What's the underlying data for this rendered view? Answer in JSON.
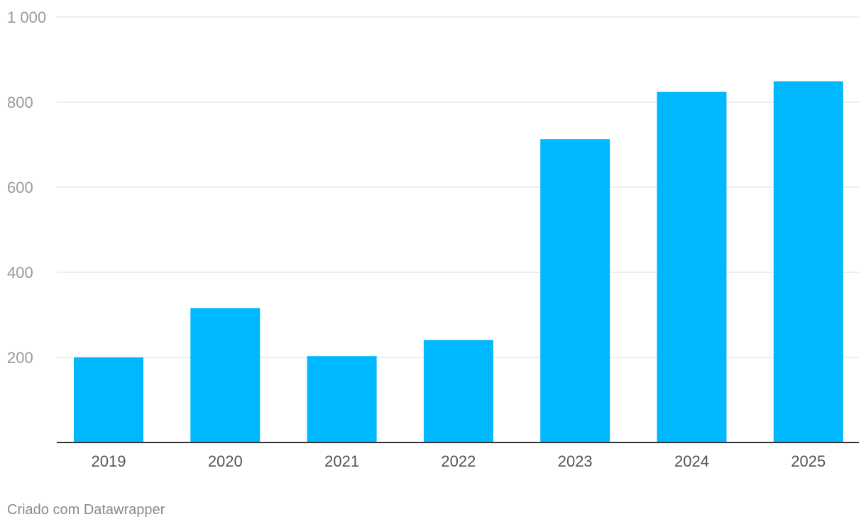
{
  "chart_data": {
    "type": "bar",
    "categories": [
      "2019",
      "2020",
      "2021",
      "2022",
      "2023",
      "2024",
      "2025"
    ],
    "values": [
      200,
      316,
      203,
      241,
      713,
      824,
      849
    ],
    "yticks": [
      200,
      400,
      600,
      800,
      1000
    ],
    "ytick_labels": [
      "200",
      "400",
      "600",
      "800",
      "1 000"
    ],
    "ylim": [
      0,
      1000
    ],
    "grid": true,
    "bar_color": "#00b8ff"
  },
  "footer": {
    "credit": "Criado com Datawrapper"
  }
}
